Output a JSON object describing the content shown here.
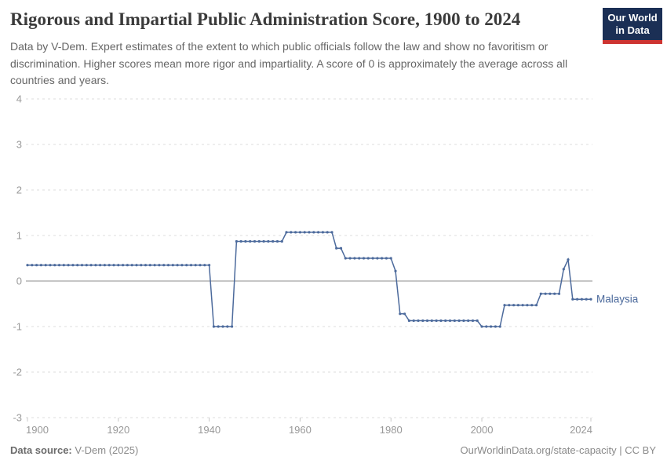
{
  "header": {
    "title": "Rigorous and Impartial Public Administration Score, 1900 to 2024",
    "subtitle": "Data by V-Dem. Expert estimates of the extent to which public officials follow the law and show no favoritism or discrimination. Higher scores mean more rigor and impartiality. A score of 0 is approximately the average across all countries and years.",
    "logo": {
      "line1": "Our World",
      "line2": "in Data"
    }
  },
  "chart_data": {
    "type": "line",
    "title": "Rigorous and Impartial Public Administration Score, 1900 to 2024",
    "xlabel": "",
    "ylabel": "",
    "x_range": [
      1900,
      2024
    ],
    "y_range": [
      -3,
      4
    ],
    "x_ticks": [
      1900,
      1920,
      1940,
      1960,
      1980,
      2000,
      2024
    ],
    "y_ticks": [
      4,
      3,
      2,
      1,
      0,
      -1,
      -2,
      -3
    ],
    "grid": "horizontal dashed gridlines, solid line at 0",
    "legend_position": "label at end of line",
    "series": [
      {
        "name": "Malaysia",
        "color": "#4c6a9c",
        "marker": "dot-per-year",
        "segments": [
          {
            "from": 1900,
            "to": 1940,
            "value": 0.35
          },
          {
            "from": 1941,
            "to": 1945,
            "value": -1.0
          },
          {
            "from": 1946,
            "to": 1956,
            "value": 0.87
          },
          {
            "from": 1957,
            "to": 1967,
            "value": 1.07
          },
          {
            "from": 1968,
            "to": 1969,
            "value": 0.72
          },
          {
            "from": 1970,
            "to": 1980,
            "value": 0.5
          },
          {
            "from": 1981,
            "to": 1981,
            "value": 0.22
          },
          {
            "from": 1982,
            "to": 1983,
            "value": -0.72
          },
          {
            "from": 1984,
            "to": 1999,
            "value": -0.87
          },
          {
            "from": 2000,
            "to": 2004,
            "value": -1.0
          },
          {
            "from": 2005,
            "to": 2012,
            "value": -0.53
          },
          {
            "from": 2013,
            "to": 2017,
            "value": -0.28
          },
          {
            "from": 2018,
            "to": 2018,
            "value": 0.26
          },
          {
            "from": 2019,
            "to": 2019,
            "value": 0.47
          },
          {
            "from": 2020,
            "to": 2024,
            "value": -0.4
          }
        ]
      }
    ]
  },
  "footer": {
    "source_label": "Data source:",
    "source_value": "V-Dem (2025)",
    "credit": "OurWorldinData.org/state-capacity | CC BY"
  },
  "colors": {
    "line": "#4c6a9c",
    "grid": "#dedede",
    "zero_line": "#a3a3a3",
    "axis_tick": "#c8c8c8",
    "tick_label": "#999999",
    "title_text": "#3b3b3b",
    "subtitle_text": "#666666",
    "footer_text": "#8a8a8a",
    "logo_bg": "#1b2f55",
    "logo_bar": "#cd3431"
  }
}
